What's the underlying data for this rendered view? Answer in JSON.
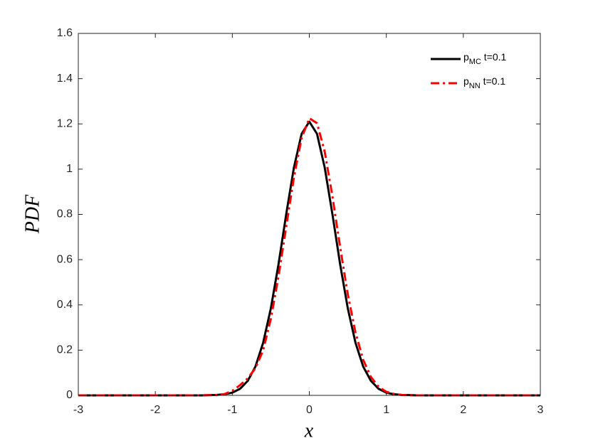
{
  "chart_data": {
    "type": "line",
    "xlabel": "x",
    "ylabel": "PDF",
    "x": [
      -3,
      -2.9,
      -2.8,
      -2.7,
      -2.6,
      -2.5,
      -2.4,
      -2.3,
      -2.2,
      -2.1,
      -2,
      -1.9,
      -1.8,
      -1.7,
      -1.6,
      -1.5,
      -1.4,
      -1.3,
      -1.2,
      -1.1,
      -1,
      -0.9,
      -0.8,
      -0.7,
      -0.6,
      -0.5,
      -0.4,
      -0.3,
      -0.2,
      -0.1,
      0,
      0.1,
      0.2,
      0.3,
      0.4,
      0.5,
      0.6,
      0.7,
      0.8,
      0.9,
      1,
      1.1,
      1.2,
      1.3,
      1.4,
      1.5,
      1.6,
      1.7,
      1.8,
      1.9,
      2,
      2.1,
      2.2,
      2.3,
      2.4,
      2.5,
      2.6,
      2.7,
      2.8,
      2.9,
      3
    ],
    "series": [
      {
        "name": "pMC t=0.1",
        "color": "#000000",
        "line_style": "solid",
        "values": [
          0,
          0,
          0,
          0,
          0,
          0,
          0,
          0,
          0,
          0,
          0,
          0,
          0,
          0,
          0,
          0,
          0,
          0.001,
          0.002,
          0.005,
          0.012,
          0.029,
          0.064,
          0.127,
          0.232,
          0.384,
          0.58,
          0.801,
          1.007,
          1.156,
          1.21,
          1.156,
          1.007,
          0.801,
          0.58,
          0.384,
          0.232,
          0.127,
          0.064,
          0.029,
          0.012,
          0.005,
          0.002,
          0.001,
          0,
          0,
          0,
          0,
          0,
          0,
          0,
          0,
          0,
          0,
          0,
          0,
          0,
          0,
          0,
          0,
          0
        ]
      },
      {
        "name": "pNN t=0.1",
        "color": "#ff0000",
        "line_style": "dashdot",
        "values": [
          0,
          0,
          0,
          0,
          0,
          0,
          0,
          0,
          0,
          0,
          0,
          0,
          0,
          0,
          0,
          0,
          0,
          0.001,
          0.002,
          0.006,
          0.02,
          0.045,
          0.075,
          0.12,
          0.199,
          0.338,
          0.526,
          0.746,
          0.964,
          1.138,
          1.225,
          1.203,
          1.077,
          0.88,
          0.656,
          0.446,
          0.277,
          0.157,
          0.081,
          0.038,
          0.016,
          0.006,
          0.002,
          0.001,
          0,
          0,
          0,
          0,
          0,
          0,
          0,
          0,
          0,
          0,
          0,
          0,
          0,
          0,
          0,
          0,
          0
        ]
      }
    ],
    "xlim": [
      -3,
      3
    ],
    "xticks": [
      -3,
      -2,
      -1,
      0,
      1,
      2,
      3
    ],
    "ylim": [
      0,
      1.6
    ],
    "yticks": [
      0,
      0.2,
      0.4,
      0.6,
      0.8,
      1,
      1.2,
      1.4,
      1.6
    ],
    "grid": false,
    "legend_position": "upper-right"
  }
}
